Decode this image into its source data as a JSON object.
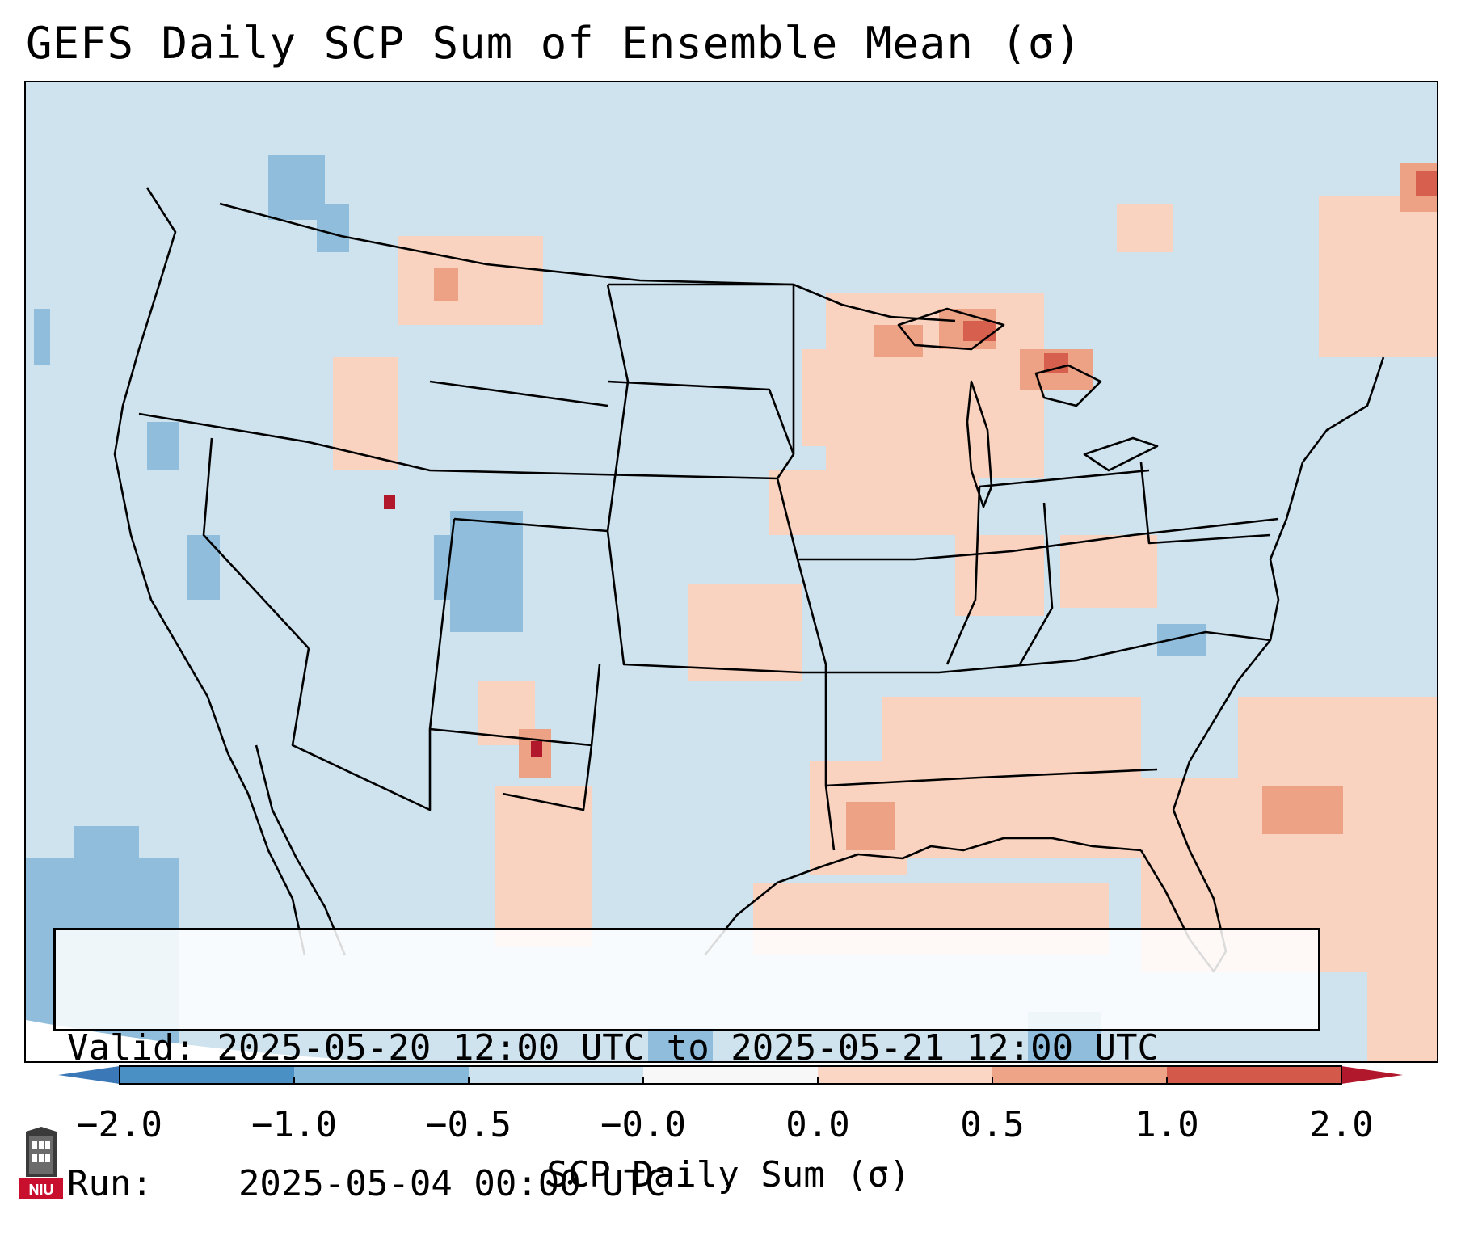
{
  "title": "GEFS Daily SCP Sum of Ensemble Mean (σ)",
  "info": {
    "valid_label": "Valid:",
    "valid_value": "2025-05-20 12:00 UTC to 2025-05-21 12:00 UTC",
    "run_label": "Run:",
    "run_value": "2025-05-04 00:00 UTC"
  },
  "colorbar": {
    "label": "SCP Daily Sum (σ)",
    "ticks": [
      "−2.0",
      "−1.0",
      "−0.5",
      "−0.0",
      "0.0",
      "0.5",
      "1.0",
      "2.0"
    ],
    "colors": [
      "#4a90c4",
      "#86b9da",
      "#cde3ef",
      "#f7f7f7",
      "#fbd6c4",
      "#eea487",
      "#d35a4a"
    ],
    "under_color": "#3a78b8",
    "over_color": "#b2182b"
  },
  "logo": {
    "text": "NIU",
    "icon": "niu-tower-logo"
  }
}
